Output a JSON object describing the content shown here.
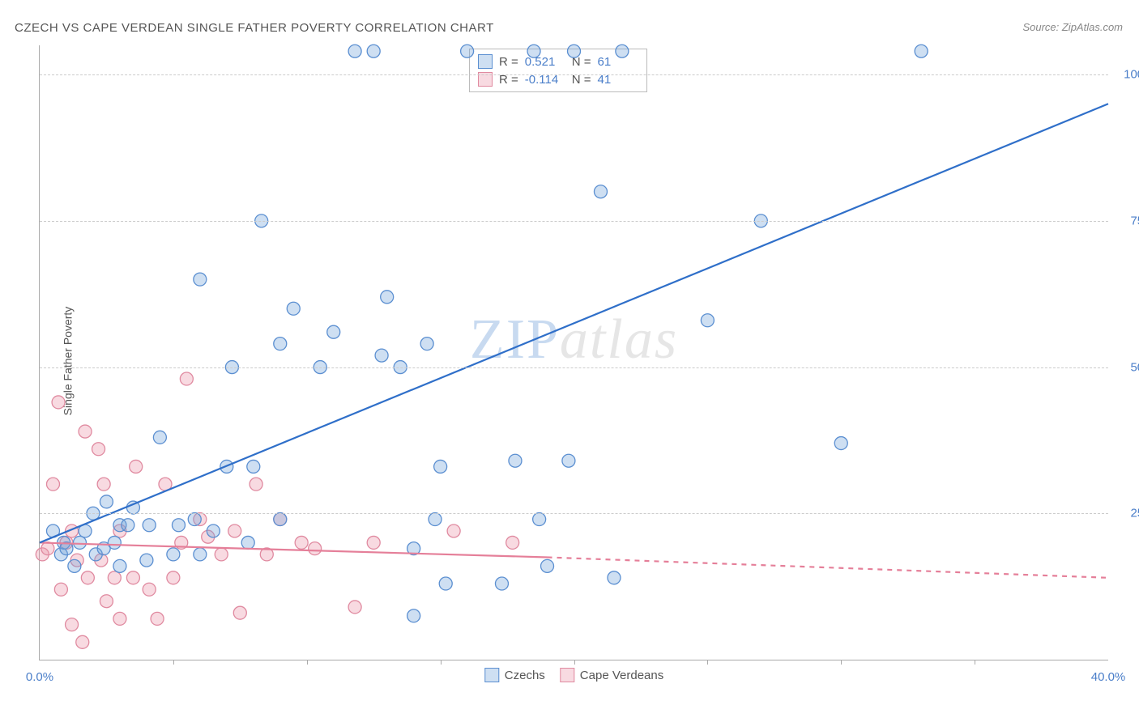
{
  "title": "CZECH VS CAPE VERDEAN SINGLE FATHER POVERTY CORRELATION CHART",
  "source": "Source: ZipAtlas.com",
  "y_axis_label": "Single Father Poverty",
  "watermark": {
    "zip": "ZIP",
    "atlas": "atlas"
  },
  "axes": {
    "x_min": 0,
    "x_max": 40,
    "y_min": 0,
    "y_max": 105,
    "x_ticks": [
      0,
      40
    ],
    "x_tick_labels": [
      "0.0%",
      "40.0%"
    ],
    "x_minor_ticks": [
      5,
      10,
      15,
      20,
      25,
      30,
      35
    ],
    "y_gridlines": [
      25,
      50,
      75,
      100
    ],
    "y_tick_labels": [
      "25.0%",
      "50.0%",
      "75.0%",
      "100.0%"
    ]
  },
  "styling": {
    "blue_fill": "rgba(116,163,219,0.35)",
    "blue_stroke": "#5b8fd1",
    "pink_fill": "rgba(235,150,170,0.35)",
    "pink_stroke": "#e08aa0",
    "blue_line": "#2f6fc9",
    "pink_line": "#e57f99",
    "marker_r": 8,
    "line_width": 2.2,
    "grid_color": "#cccccc",
    "axis_color": "#aaaaaa",
    "tick_color": "#4a7ec9",
    "label_color": "#555555",
    "title_font_size": 15,
    "tick_font_size": 15,
    "watermark_font_size": 70
  },
  "legend_top": {
    "rows": [
      {
        "swatch": "blue",
        "r_label": "R =",
        "r_val": "0.521",
        "n_label": "N =",
        "n_val": "61"
      },
      {
        "swatch": "pink",
        "r_label": "R =",
        "r_val": "-0.114",
        "n_label": "N =",
        "n_val": "41"
      }
    ]
  },
  "legend_bottom": {
    "items": [
      {
        "swatch": "blue",
        "label": "Czechs"
      },
      {
        "swatch": "pink",
        "label": "Cape Verdeans"
      }
    ]
  },
  "series": {
    "czechs": {
      "color": "blue",
      "trend": {
        "x1": 0,
        "y1": 20,
        "x2": 40,
        "y2": 95,
        "dash": false
      },
      "points": [
        [
          0.5,
          22
        ],
        [
          0.8,
          18
        ],
        [
          0.9,
          20
        ],
        [
          1.0,
          19
        ],
        [
          1.3,
          16
        ],
        [
          1.5,
          20
        ],
        [
          1.7,
          22
        ],
        [
          2.0,
          25
        ],
        [
          2.1,
          18
        ],
        [
          2.4,
          19
        ],
        [
          2.5,
          27
        ],
        [
          2.8,
          20
        ],
        [
          3.0,
          23
        ],
        [
          3.0,
          16
        ],
        [
          3.3,
          23
        ],
        [
          3.5,
          26
        ],
        [
          4.1,
          23
        ],
        [
          4.0,
          17
        ],
        [
          4.5,
          38
        ],
        [
          5.0,
          18
        ],
        [
          5.2,
          23
        ],
        [
          5.8,
          24
        ],
        [
          6.0,
          18
        ],
        [
          6.0,
          65
        ],
        [
          6.5,
          22
        ],
        [
          7.0,
          33
        ],
        [
          7.2,
          50
        ],
        [
          7.8,
          20
        ],
        [
          8.0,
          33
        ],
        [
          8.3,
          75
        ],
        [
          9.0,
          24
        ],
        [
          9.0,
          54
        ],
        [
          9.5,
          60
        ],
        [
          10.5,
          50
        ],
        [
          11.0,
          56
        ],
        [
          11.8,
          104
        ],
        [
          12.5,
          104
        ],
        [
          12.8,
          52
        ],
        [
          13.0,
          62
        ],
        [
          13.5,
          50
        ],
        [
          14.0,
          19
        ],
        [
          14.0,
          7.5
        ],
        [
          14.5,
          54
        ],
        [
          14.8,
          24
        ],
        [
          15.0,
          33
        ],
        [
          15.2,
          13
        ],
        [
          16.0,
          104
        ],
        [
          17.3,
          13
        ],
        [
          17.8,
          34
        ],
        [
          18.5,
          104
        ],
        [
          18.7,
          24
        ],
        [
          19.0,
          16
        ],
        [
          19.8,
          34
        ],
        [
          20.0,
          104
        ],
        [
          21.0,
          80
        ],
        [
          21.8,
          104
        ],
        [
          21.5,
          14
        ],
        [
          25.0,
          58
        ],
        [
          27.0,
          75
        ],
        [
          30.0,
          37
        ],
        [
          33.0,
          104
        ]
      ]
    },
    "cape_verdeans": {
      "color": "pink",
      "trend": {
        "x1": 0,
        "y1": 20,
        "x2": 19,
        "y2": 17.5,
        "dash": false
      },
      "trend_ext": {
        "x1": 19,
        "y1": 17.5,
        "x2": 40,
        "y2": 14,
        "dash": true
      },
      "points": [
        [
          0.1,
          18
        ],
        [
          0.3,
          19
        ],
        [
          0.5,
          30
        ],
        [
          0.7,
          44
        ],
        [
          0.8,
          12
        ],
        [
          1.0,
          20
        ],
        [
          1.2,
          22
        ],
        [
          1.2,
          6
        ],
        [
          1.4,
          17
        ],
        [
          1.6,
          3
        ],
        [
          1.7,
          39
        ],
        [
          1.8,
          14
        ],
        [
          2.2,
          36
        ],
        [
          2.3,
          17
        ],
        [
          2.4,
          30
        ],
        [
          2.5,
          10
        ],
        [
          2.8,
          14
        ],
        [
          3.0,
          22
        ],
        [
          3.0,
          7
        ],
        [
          3.5,
          14
        ],
        [
          3.6,
          33
        ],
        [
          4.1,
          12
        ],
        [
          4.4,
          7
        ],
        [
          4.7,
          30
        ],
        [
          5.0,
          14
        ],
        [
          5.3,
          20
        ],
        [
          5.5,
          48
        ],
        [
          6.0,
          24
        ],
        [
          6.3,
          21
        ],
        [
          6.8,
          18
        ],
        [
          7.3,
          22
        ],
        [
          7.5,
          8
        ],
        [
          8.1,
          30
        ],
        [
          8.5,
          18
        ],
        [
          9.0,
          24
        ],
        [
          9.8,
          20
        ],
        [
          10.3,
          19
        ],
        [
          11.8,
          9
        ],
        [
          12.5,
          20
        ],
        [
          15.5,
          22
        ],
        [
          17.7,
          20
        ]
      ]
    }
  }
}
